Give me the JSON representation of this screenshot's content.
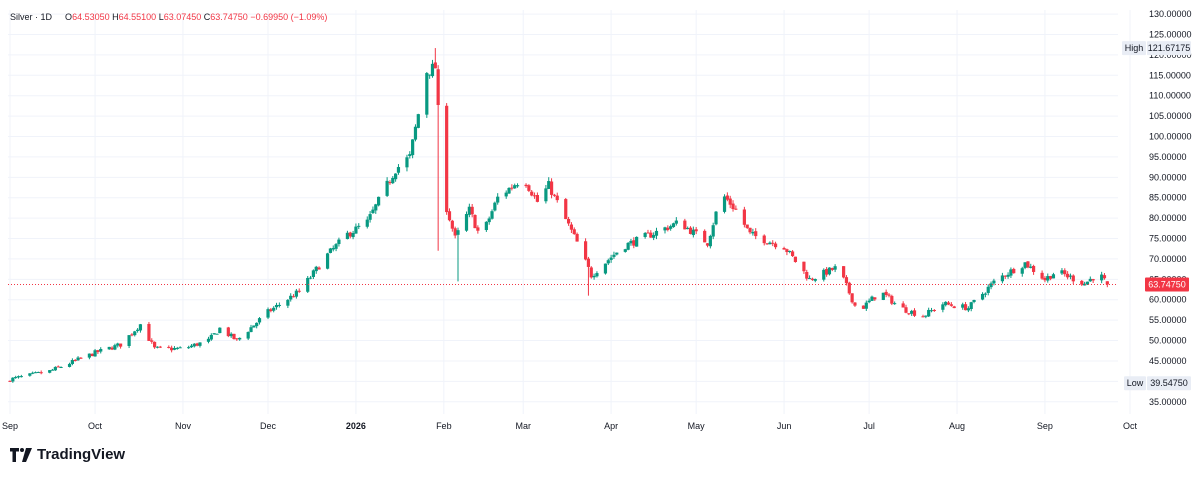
{
  "symbol": "Silver · 1D",
  "ohlc": {
    "open_label": "O",
    "open": "64.53050",
    "high_label": "H",
    "high": "64.55100",
    "low_label": "L",
    "low": "63.07450",
    "close_label": "C",
    "close": "63.74750",
    "change": "−0.69950 (−1.09%)"
  },
  "brand": "TradingView",
  "colors": {
    "up": "#089981",
    "down": "#f23645",
    "grid": "#f0f3fa",
    "text": "#131722",
    "price_line": "#f23645",
    "badge_bg": "#e9edf5"
  },
  "markers": {
    "high_label": "High",
    "high_value": "121.67175",
    "low_label": "Low",
    "low_value": "39.54750",
    "last_value": "63.74750"
  },
  "chart_data": {
    "type": "candlestick",
    "y_axis_ticks": [
      "35.00000",
      "40.00000",
      "45.00000",
      "50.00000",
      "55.00000",
      "60.00000",
      "65.00000",
      "70.00000",
      "75.00000",
      "80.00000",
      "85.00000",
      "90.00000",
      "95.00000",
      "100.00000",
      "105.00000",
      "110.00000",
      "115.00000",
      "120.00000",
      "125.00000",
      "130.00000"
    ],
    "x_axis_ticks": [
      "Sep",
      "Oct",
      "Nov",
      "Dec",
      "2026",
      "Feb",
      "Mar",
      "Apr",
      "May",
      "Jun",
      "Jul",
      "Aug",
      "Sep",
      "Oct"
    ],
    "ylim": [
      32,
      131
    ],
    "high": 121.67175,
    "low": 39.5475,
    "last": 63.7475,
    "close_path": [
      {
        "date": "2025-09-01",
        "close": 40.5
      },
      {
        "date": "2025-09-15",
        "close": 42.5
      },
      {
        "date": "2025-10-01",
        "close": 47
      },
      {
        "date": "2025-10-10",
        "close": 49
      },
      {
        "date": "2025-10-17",
        "close": 54
      },
      {
        "date": "2025-10-22",
        "close": 48
      },
      {
        "date": "2025-11-01",
        "close": 48
      },
      {
        "date": "2025-11-10",
        "close": 50
      },
      {
        "date": "2025-11-14",
        "close": 53
      },
      {
        "date": "2025-11-20",
        "close": 50
      },
      {
        "date": "2025-12-01",
        "close": 57
      },
      {
        "date": "2025-12-12",
        "close": 62
      },
      {
        "date": "2025-12-22",
        "close": 71
      },
      {
        "date": "2025-12-29",
        "close": 76
      },
      {
        "date": "2026-01-05",
        "close": 79
      },
      {
        "date": "2026-01-15",
        "close": 92
      },
      {
        "date": "2026-01-20",
        "close": 95
      },
      {
        "date": "2026-01-26",
        "close": 116
      },
      {
        "date": "2026-01-29",
        "close": 117
      },
      {
        "date": "2026-02-01",
        "close": 85
      },
      {
        "date": "2026-02-05",
        "close": 75
      },
      {
        "date": "2026-02-10",
        "close": 82
      },
      {
        "date": "2026-02-14",
        "close": 75
      },
      {
        "date": "2026-02-20",
        "close": 85
      },
      {
        "date": "2026-03-01",
        "close": 90
      },
      {
        "date": "2026-03-06",
        "close": 84
      },
      {
        "date": "2026-03-10",
        "close": 88
      },
      {
        "date": "2026-03-20",
        "close": 74
      },
      {
        "date": "2026-03-25",
        "close": 66
      },
      {
        "date": "2026-04-05",
        "close": 73
      },
      {
        "date": "2026-04-15",
        "close": 76
      },
      {
        "date": "2026-04-25",
        "close": 79
      },
      {
        "date": "2026-05-05",
        "close": 74
      },
      {
        "date": "2026-05-10",
        "close": 86
      },
      {
        "date": "2026-05-15",
        "close": 82
      },
      {
        "date": "2026-05-20",
        "close": 76
      },
      {
        "date": "2026-06-01",
        "close": 73
      },
      {
        "date": "2026-06-10",
        "close": 65
      },
      {
        "date": "2026-06-20",
        "close": 68
      },
      {
        "date": "2026-06-27",
        "close": 57
      },
      {
        "date": "2026-07-05",
        "close": 62
      },
      {
        "date": "2026-07-12",
        "close": 58
      },
      {
        "date": "2026-07-20",
        "close": 56
      },
      {
        "date": "2026-07-27",
        "close": 59
      },
      {
        "date": "2026-08-05",
        "close": 58
      },
      {
        "date": "2026-08-15",
        "close": 65
      },
      {
        "date": "2026-08-25",
        "close": 69
      },
      {
        "date": "2026-09-01",
        "close": 65
      },
      {
        "date": "2026-09-05",
        "close": 67
      },
      {
        "date": "2026-09-15",
        "close": 64
      },
      {
        "date": "2026-09-20",
        "close": 66.5
      },
      {
        "date": "2026-09-23",
        "close": 63.7475
      }
    ]
  }
}
